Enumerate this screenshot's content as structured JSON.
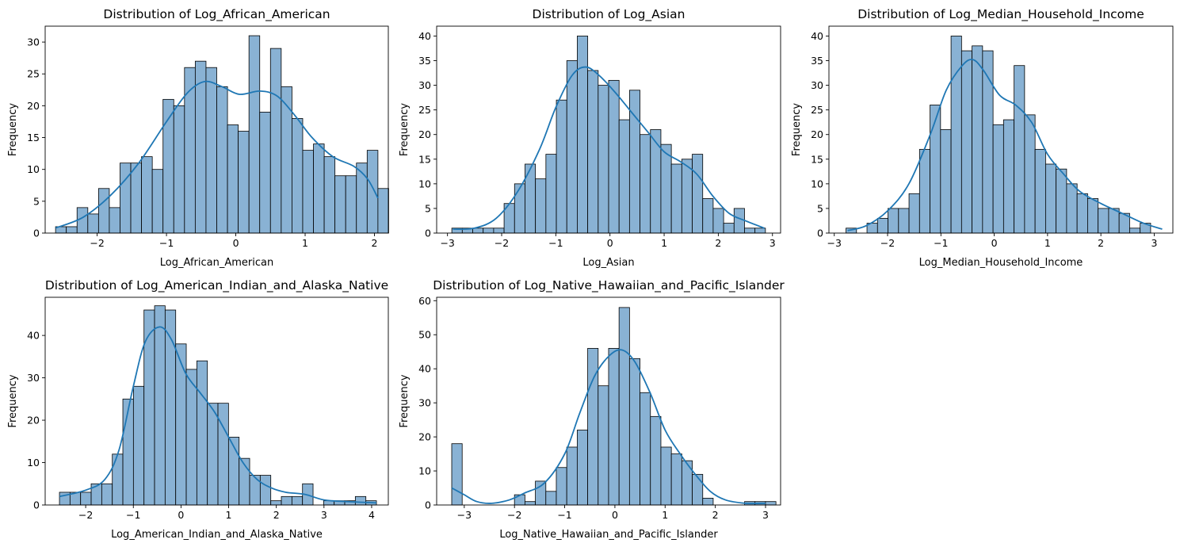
{
  "chart_data": [
    {
      "type": "bar",
      "title": "Distribution of Log_African_American",
      "xlabel": "Log_African_American",
      "ylabel": "Frequency",
      "xlim": [
        -2.75,
        2.2
      ],
      "ylim": [
        0,
        32.5
      ],
      "xticks": [
        -2,
        -1,
        0,
        1,
        2
      ],
      "yticks": [
        0,
        5,
        10,
        15,
        20,
        25,
        30
      ],
      "bin_start": -2.6,
      "bin_width": 0.155,
      "counts": [
        1,
        1,
        4,
        3,
        7,
        4,
        11,
        11,
        12,
        10,
        21,
        20,
        26,
        27,
        26,
        23,
        17,
        16,
        31,
        19,
        29,
        23,
        18,
        13,
        14,
        12,
        9,
        9,
        11,
        13,
        7
      ],
      "kde": [
        [
          -2.6,
          0.8
        ],
        [
          -2.2,
          2.5
        ],
        [
          -1.8,
          6
        ],
        [
          -1.4,
          11
        ],
        [
          -1.0,
          17.5
        ],
        [
          -0.7,
          22
        ],
        [
          -0.45,
          23.8
        ],
        [
          -0.2,
          23
        ],
        [
          0.05,
          21.8
        ],
        [
          0.35,
          22.3
        ],
        [
          0.6,
          21.5
        ],
        [
          0.85,
          18.5
        ],
        [
          1.1,
          15
        ],
        [
          1.4,
          12
        ],
        [
          1.7,
          10.5
        ],
        [
          1.9,
          8.5
        ],
        [
          2.05,
          5.5
        ]
      ]
    },
    {
      "type": "bar",
      "title": "Distribution of Log_Asian",
      "xlabel": "Log_Asian",
      "ylabel": "Frequency",
      "xlim": [
        -3.2,
        3.15
      ],
      "ylim": [
        0,
        42
      ],
      "xticks": [
        -3,
        -2,
        -1,
        0,
        1,
        2,
        3
      ],
      "yticks": [
        0,
        5,
        10,
        15,
        20,
        25,
        30,
        35,
        40
      ],
      "bin_start": -2.92,
      "bin_width": 0.193,
      "counts": [
        1,
        1,
        1,
        1,
        1,
        6,
        10,
        14,
        11,
        16,
        27,
        35,
        40,
        33,
        30,
        31,
        23,
        29,
        20,
        21,
        18,
        14,
        15,
        16,
        7,
        5,
        2,
        5,
        1,
        1
      ],
      "kde": [
        [
          -2.9,
          0.8
        ],
        [
          -2.5,
          1
        ],
        [
          -2.1,
          3
        ],
        [
          -1.7,
          8.5
        ],
        [
          -1.3,
          17
        ],
        [
          -1.0,
          25.5
        ],
        [
          -0.7,
          32
        ],
        [
          -0.45,
          33.7
        ],
        [
          -0.2,
          32
        ],
        [
          0.1,
          28.5
        ],
        [
          0.4,
          24.5
        ],
        [
          0.7,
          20.5
        ],
        [
          1.0,
          16.5
        ],
        [
          1.3,
          14.5
        ],
        [
          1.6,
          12
        ],
        [
          1.9,
          7.5
        ],
        [
          2.2,
          4
        ],
        [
          2.5,
          2.5
        ],
        [
          2.85,
          1
        ]
      ]
    },
    {
      "type": "bar",
      "title": "Distribution of Log_Median_Household_Income",
      "xlabel": "Log_Median_Household_Income",
      "ylabel": "Frequency",
      "xlim": [
        -3.1,
        3.35
      ],
      "ylim": [
        0,
        42
      ],
      "xticks": [
        -3,
        -2,
        -1,
        0,
        1,
        2,
        3
      ],
      "yticks": [
        0,
        5,
        10,
        15,
        20,
        25,
        30,
        35,
        40
      ],
      "bin_start": -2.78,
      "bin_width": 0.197,
      "counts": [
        1,
        0,
        2,
        3,
        5,
        5,
        8,
        17,
        26,
        21,
        40,
        37,
        38,
        37,
        22,
        23,
        34,
        24,
        17,
        14,
        13,
        10,
        8,
        7,
        5,
        5,
        4,
        1,
        2
      ],
      "kde": [
        [
          -2.75,
          0.5
        ],
        [
          -2.4,
          1.5
        ],
        [
          -2.0,
          4.5
        ],
        [
          -1.6,
          10
        ],
        [
          -1.2,
          20
        ],
        [
          -0.9,
          29
        ],
        [
          -0.6,
          34
        ],
        [
          -0.4,
          35.2
        ],
        [
          -0.2,
          33
        ],
        [
          0.1,
          28
        ],
        [
          0.4,
          26
        ],
        [
          0.7,
          22.5
        ],
        [
          1.0,
          16
        ],
        [
          1.3,
          12
        ],
        [
          1.6,
          8.5
        ],
        [
          2.0,
          6
        ],
        [
          2.4,
          4
        ],
        [
          2.8,
          2
        ],
        [
          3.15,
          0.8
        ]
      ]
    },
    {
      "type": "bar",
      "title": "Distribution of Log_American_Indian_and_Alaska_Native",
      "xlabel": "Log_American_Indian_and_Alaska_Native",
      "ylabel": "Frequency",
      "xlim": [
        -2.85,
        4.35
      ],
      "ylim": [
        0,
        49
      ],
      "xticks": [
        -2,
        -1,
        0,
        1,
        2,
        3,
        4
      ],
      "yticks": [
        0,
        10,
        20,
        30,
        40
      ],
      "bin_start": -2.55,
      "bin_width": 0.2217,
      "counts": [
        3,
        3,
        3,
        5,
        5,
        12,
        25,
        28,
        46,
        47,
        46,
        38,
        32,
        34,
        24,
        24,
        16,
        11,
        7,
        7,
        1,
        2,
        2,
        5,
        0,
        1,
        1,
        1,
        2,
        1
      ],
      "kde": [
        [
          -2.55,
          2
        ],
        [
          -2.0,
          3.5
        ],
        [
          -1.6,
          6
        ],
        [
          -1.3,
          13
        ],
        [
          -1.0,
          28
        ],
        [
          -0.75,
          38.5
        ],
        [
          -0.45,
          42
        ],
        [
          -0.2,
          39
        ],
        [
          0.1,
          31
        ],
        [
          0.4,
          26.5
        ],
        [
          0.7,
          22
        ],
        [
          1.0,
          16
        ],
        [
          1.3,
          10
        ],
        [
          1.6,
          6
        ],
        [
          1.9,
          4
        ],
        [
          2.2,
          3
        ],
        [
          2.6,
          2.5
        ],
        [
          3.0,
          1.2
        ],
        [
          3.5,
          0.8
        ],
        [
          4.1,
          0.5
        ]
      ]
    },
    {
      "type": "bar",
      "title": "Distribution of Log_Native_Hawaiian_and_Pacific_Islander",
      "xlabel": "Log_Native_Hawaiian_and_Pacific_Islander",
      "ylabel": "Frequency",
      "xlim": [
        -3.55,
        3.3
      ],
      "ylim": [
        0,
        61
      ],
      "xticks": [
        -3,
        -2,
        -1,
        0,
        1,
        2,
        3
      ],
      "yticks": [
        0,
        10,
        20,
        30,
        40,
        50,
        60
      ],
      "bin_start": -3.25,
      "bin_width": 0.2083,
      "counts": [
        18,
        0,
        0,
        0,
        0,
        0,
        3,
        1,
        7,
        4,
        11,
        17,
        22,
        46,
        35,
        46,
        58,
        43,
        33,
        26,
        17,
        15,
        13,
        9,
        2,
        0,
        0,
        0,
        1,
        1,
        1
      ],
      "kde": [
        [
          -3.25,
          5
        ],
        [
          -3.0,
          3
        ],
        [
          -2.75,
          1
        ],
        [
          -2.45,
          0.5
        ],
        [
          -2.1,
          1.5
        ],
        [
          -1.8,
          3.5
        ],
        [
          -1.4,
          6.5
        ],
        [
          -1.0,
          15
        ],
        [
          -0.7,
          27
        ],
        [
          -0.4,
          38
        ],
        [
          -0.1,
          44
        ],
        [
          0.15,
          45.5
        ],
        [
          0.4,
          42
        ],
        [
          0.7,
          33
        ],
        [
          1.0,
          22
        ],
        [
          1.3,
          15
        ],
        [
          1.6,
          9
        ],
        [
          1.9,
          4
        ],
        [
          2.2,
          1.5
        ],
        [
          2.6,
          0.5
        ],
        [
          3.0,
          0.5
        ]
      ]
    }
  ],
  "colors": {
    "bar_fill": "#89b2d4",
    "bar_edge": "#000000",
    "kde_line": "#1f77b4"
  }
}
